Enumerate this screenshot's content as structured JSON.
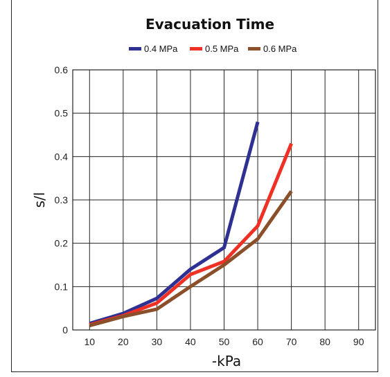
{
  "chart_data": {
    "type": "line",
    "title": "Evacuation Time",
    "xlabel": "-kPa",
    "ylabel": "s/l",
    "x": [
      10,
      20,
      30,
      40,
      50,
      60,
      70
    ],
    "x_ticks": [
      "10",
      "20",
      "30",
      "40",
      "50",
      "60",
      "70",
      "80",
      "90"
    ],
    "y_ticks": [
      "0",
      "0.1",
      "0.2",
      "0.3",
      "0.4",
      "0.5",
      "0.6"
    ],
    "xlim": [
      5,
      95
    ],
    "ylim": [
      0,
      0.6
    ],
    "grid": true,
    "legend_position": "top",
    "series": [
      {
        "name": "0.4 MPa",
        "color": "#2e3192",
        "values": [
          0.015,
          0.038,
          0.073,
          0.14,
          0.19,
          0.48,
          null
        ]
      },
      {
        "name": "0.5 MPa",
        "color": "#ee3124",
        "values": [
          0.012,
          0.033,
          0.062,
          0.128,
          0.158,
          0.24,
          0.43
        ]
      },
      {
        "name": "0.6 MPa",
        "color": "#8b4f2a",
        "values": [
          0.01,
          0.031,
          0.048,
          0.1,
          0.15,
          0.21,
          0.32
        ]
      }
    ]
  }
}
